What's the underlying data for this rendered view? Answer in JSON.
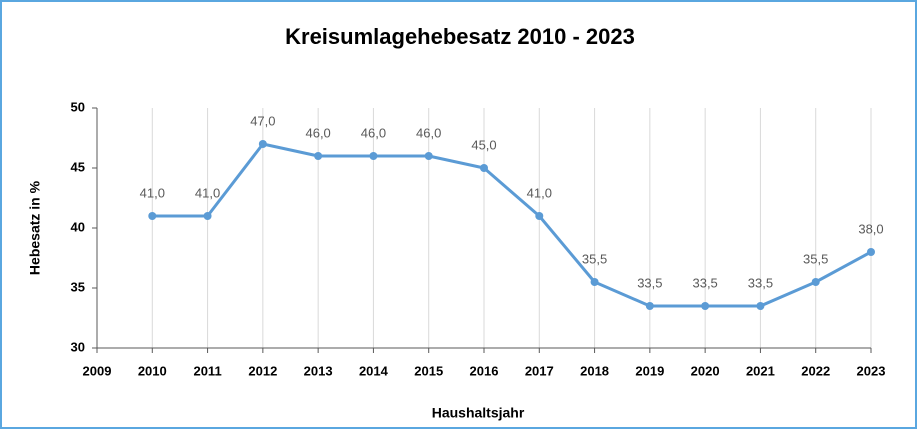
{
  "chart_data": {
    "type": "line",
    "title": "Kreisumlagehebesatz 2010 - 2023",
    "x_label": "Haushaltsjahr",
    "y_label": "Hebesatz in %",
    "x": [
      2010,
      2011,
      2012,
      2013,
      2014,
      2015,
      2016,
      2017,
      2018,
      2019,
      2020,
      2021,
      2022,
      2023
    ],
    "series": [
      {
        "name": "Hebesatz",
        "color": "#5b9bd5",
        "values": [
          41,
          41,
          47,
          46,
          46,
          46,
          45,
          41,
          35.5,
          33.5,
          33.5,
          33.5,
          35.5,
          38
        ],
        "value_labels": [
          "41,0",
          "41,0",
          "47,0",
          "46,0",
          "46,0",
          "46,0",
          "45,0",
          "41,0",
          "35,5",
          "33,5",
          "33,5",
          "33,5",
          "35,5",
          "38,0"
        ]
      }
    ],
    "xlim": [
      2009,
      2023
    ],
    "xticks": [
      2009,
      2010,
      2011,
      2012,
      2013,
      2014,
      2015,
      2016,
      2017,
      2018,
      2019,
      2020,
      2021,
      2022,
      2023
    ],
    "ylim": [
      30,
      50
    ],
    "yticks": [
      30,
      35,
      40,
      45,
      50
    ],
    "x_grid": true
  }
}
